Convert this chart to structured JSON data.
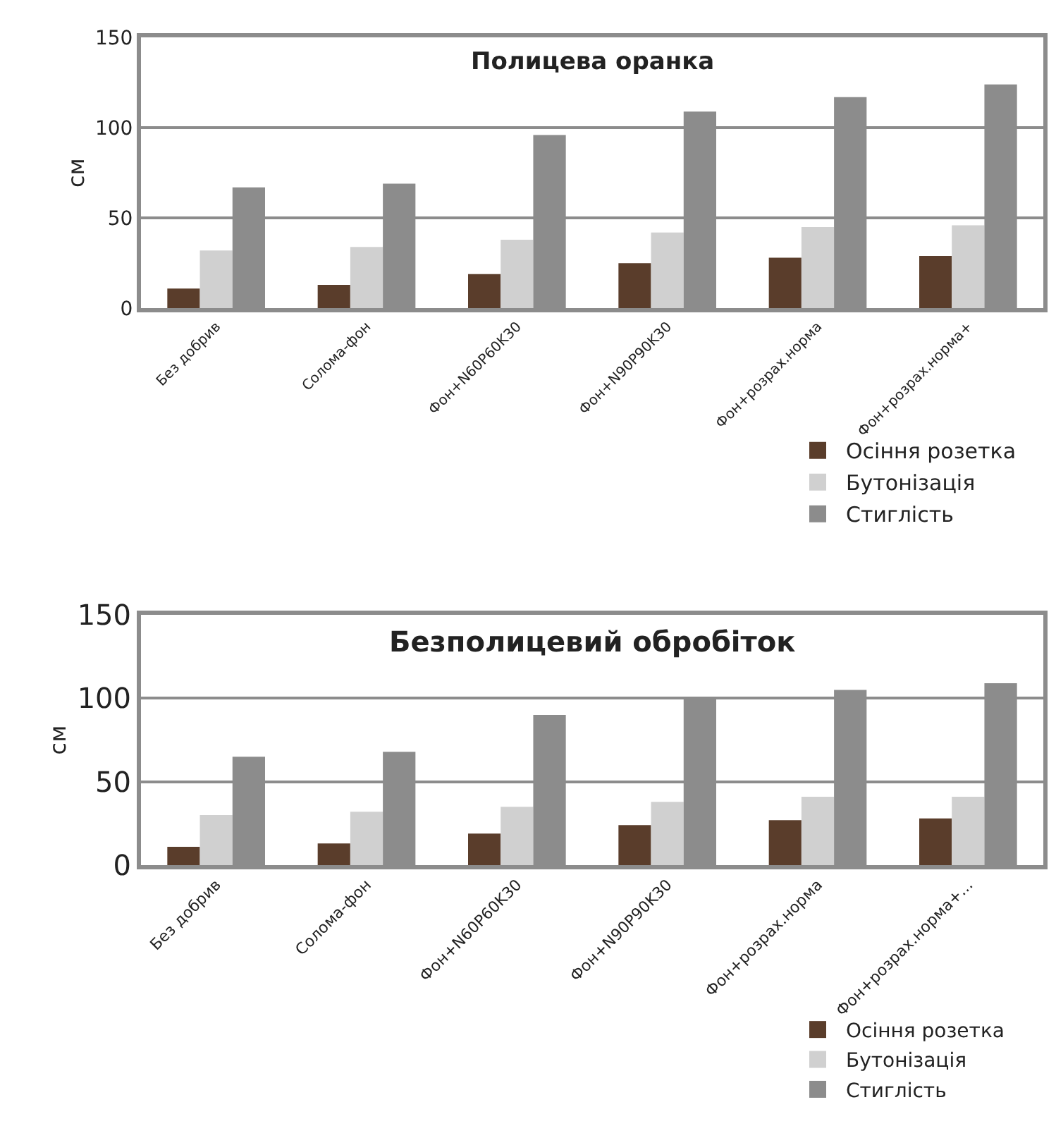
{
  "chart_data": [
    {
      "type": "bar",
      "title": "Полицева оранка",
      "ylabel": "см",
      "categories": [
        "Без добрив",
        "Солома-фон",
        "Фон+N60P60K30",
        "Фон+N90P90K30",
        "Фон+розрах.норма",
        "Фон+розрах.норма+"
      ],
      "series": [
        {
          "name": "Осіння розетка",
          "color": "#5a3d2b",
          "values": [
            11,
            13,
            19,
            25,
            28,
            29
          ]
        },
        {
          "name": "Бутонізація",
          "color": "#d0d0d0",
          "values": [
            32,
            34,
            38,
            42,
            45,
            46
          ]
        },
        {
          "name": "Стиглість",
          "color": "#8c8c8c",
          "values": [
            67,
            69,
            96,
            109,
            117,
            124
          ]
        }
      ],
      "ylim": [
        0,
        150
      ],
      "yticks": [
        0,
        50,
        100,
        150
      ],
      "grid": "y",
      "legend": "bottom right"
    },
    {
      "type": "bar",
      "title": "Безполицевий обробіток",
      "ylabel": "см",
      "categories": [
        "Без добрив",
        "Солома-фон",
        "Фон+N60P60K30",
        "Фон+N90P90K30",
        "Фон+розрах.норма",
        "Фон+розрах.норма+..."
      ],
      "series": [
        {
          "name": "Осіння розетка",
          "color": "#5a3d2b",
          "values": [
            11,
            13,
            19,
            24,
            27,
            28
          ]
        },
        {
          "name": "Бутонізація",
          "color": "#d0d0d0",
          "values": [
            30,
            32,
            35,
            38,
            41,
            41
          ]
        },
        {
          "name": "Стиглість",
          "color": "#8c8c8c",
          "values": [
            65,
            68,
            90,
            100,
            105,
            109
          ]
        }
      ],
      "ylim": [
        0,
        150
      ],
      "yticks": [
        0,
        50,
        100,
        150
      ],
      "grid": "y",
      "legend": "bottom right"
    }
  ]
}
